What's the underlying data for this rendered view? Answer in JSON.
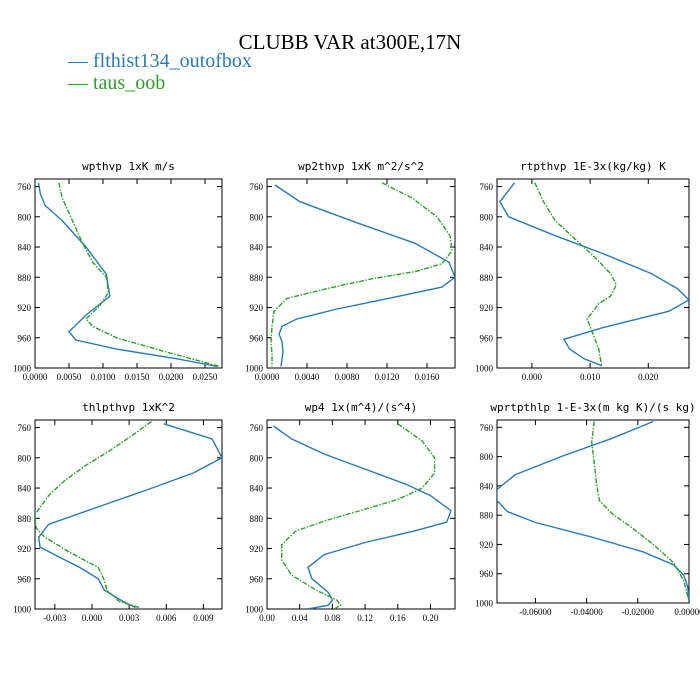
{
  "title": "CLUBB VAR at300E,17N",
  "legend": [
    {
      "label": "flthist134_outofbox",
      "color": "#2a7ab8"
    },
    {
      "label": "taus_oob",
      "color": "#2ca02c"
    }
  ],
  "chart_data": [
    {
      "type": "line",
      "title": "wpthvp   1xK m/s",
      "xlim": [
        0,
        0.0275
      ],
      "ylim": [
        1000,
        750
      ],
      "xticks": [
        "0.0000",
        "0.0050",
        "0.0100",
        "0.0150",
        "0.0200",
        "0.0250"
      ],
      "xtick_values": [
        0,
        0.005,
        0.01,
        0.015,
        0.02,
        0.025
      ],
      "yticks": [
        "760",
        "800",
        "840",
        "880",
        "920",
        "960",
        "1000"
      ],
      "ytick_values": [
        760,
        800,
        840,
        880,
        920,
        960,
        1000
      ],
      "series": [
        {
          "name": "flthist134_outofbox",
          "style": "solid",
          "x": [
            0.0005,
            0.0008,
            0.0015,
            0.004,
            0.0075,
            0.0105,
            0.011,
            0.0075,
            0.005,
            0.006,
            0.012,
            0.021,
            0.0268
          ],
          "y": [
            755,
            770,
            785,
            805,
            840,
            876,
            905,
            930,
            952,
            963,
            975,
            988,
            998
          ]
        },
        {
          "name": "taus_oob",
          "style": "dashed",
          "x": [
            0.0035,
            0.004,
            0.0055,
            0.007,
            0.0085,
            0.0105,
            0.0108,
            0.0095,
            0.0075,
            0.0085,
            0.012,
            0.019,
            0.0272
          ],
          "y": [
            755,
            775,
            805,
            835,
            860,
            880,
            900,
            918,
            935,
            945,
            960,
            978,
            998
          ]
        }
      ]
    },
    {
      "type": "line",
      "title": "wp2thvp   1xK m^2/s^2",
      "xlim": [
        0,
        0.0188
      ],
      "ylim": [
        1000,
        750
      ],
      "xticks": [
        "0.0000",
        "0.0040",
        "0.0080",
        "0.0120",
        "0.0160"
      ],
      "xtick_values": [
        0,
        0.004,
        0.008,
        0.012,
        0.016
      ],
      "yticks": [
        "760",
        "800",
        "840",
        "880",
        "920",
        "960",
        "1000"
      ],
      "ytick_values": [
        760,
        800,
        840,
        880,
        920,
        960,
        1000
      ],
      "series": [
        {
          "name": "flthist134_outofbox",
          "style": "solid",
          "x": [
            0.0008,
            0.0033,
            0.009,
            0.0148,
            0.0182,
            0.0188,
            0.0175,
            0.0125,
            0.007,
            0.003,
            0.0015,
            0.0012,
            0.0015,
            0.0016,
            0.0014
          ],
          "y": [
            758,
            780,
            808,
            835,
            860,
            880,
            893,
            907,
            922,
            935,
            945,
            955,
            965,
            978,
            998
          ]
        },
        {
          "name": "taus_oob",
          "style": "dashed",
          "x": [
            0.0115,
            0.0145,
            0.017,
            0.0183,
            0.0185,
            0.0175,
            0.015,
            0.0105,
            0.006,
            0.002,
            0.0007,
            0.0005,
            0.0004,
            0.0005,
            0.0005
          ],
          "y": [
            755,
            775,
            800,
            825,
            845,
            862,
            872,
            882,
            895,
            908,
            925,
            945,
            965,
            982,
            998
          ]
        }
      ]
    },
    {
      "type": "line",
      "title": "rtpthvp   1E-3x(kg/kg) K",
      "xlim": [
        -0.006,
        0.027
      ],
      "ylim": [
        1000,
        750
      ],
      "xticks": [
        "0.000",
        "0.010",
        "0.020"
      ],
      "xtick_values": [
        0,
        0.01,
        0.02
      ],
      "yticks": [
        "760",
        "800",
        "840",
        "880",
        "920",
        "960",
        "1000"
      ],
      "ytick_values": [
        760,
        800,
        840,
        880,
        920,
        960,
        1000
      ],
      "series": [
        {
          "name": "flthist134_outofbox",
          "style": "solid",
          "x": [
            -0.003,
            -0.0055,
            -0.004,
            0.004,
            0.012,
            0.0205,
            0.025,
            0.027,
            0.0235,
            0.012,
            0.0055,
            0.0065,
            0.009,
            0.012
          ],
          "y": [
            755,
            780,
            800,
            825,
            848,
            875,
            895,
            910,
            925,
            947,
            962,
            975,
            988,
            997
          ]
        },
        {
          "name": "taus_oob",
          "style": "dashed",
          "x": [
            0.0005,
            0.002,
            0.004,
            0.0075,
            0.011,
            0.0135,
            0.0145,
            0.0135,
            0.0115,
            0.0095,
            0.0105,
            0.0115,
            0.012
          ],
          "y": [
            755,
            780,
            805,
            830,
            855,
            875,
            890,
            905,
            915,
            935,
            955,
            975,
            998
          ]
        }
      ]
    },
    {
      "type": "line",
      "title": "thlpthvp   1xK^2",
      "xlim": [
        -0.0046,
        0.0105
      ],
      "ylim": [
        1000,
        750
      ],
      "xticks": [
        "-0.003",
        "0.000",
        "0.003",
        "0.006",
        "0.009"
      ],
      "xtick_values": [
        -0.003,
        0,
        0.003,
        0.006,
        0.009
      ],
      "yticks": [
        "760",
        "800",
        "840",
        "880",
        "920",
        "960",
        "1000"
      ],
      "ytick_values": [
        760,
        800,
        840,
        880,
        920,
        960,
        1000
      ],
      "series": [
        {
          "name": "flthist134_outofbox",
          "style": "solid",
          "x": [
            0.0058,
            0.0097,
            0.0105,
            0.0082,
            0.0045,
            0.0005,
            -0.0035,
            -0.0043,
            -0.0042,
            -0.0028,
            -0.001,
            0.0005,
            0.001,
            0.0025,
            0.0035
          ],
          "y": [
            755,
            775,
            800,
            820,
            842,
            865,
            888,
            905,
            918,
            930,
            945,
            960,
            975,
            990,
            998
          ]
        },
        {
          "name": "taus_oob",
          "style": "dashed",
          "x": [
            0.0048,
            0.0033,
            0.0015,
            -0.0005,
            -0.0022,
            -0.0035,
            -0.0046,
            -0.0045,
            -0.0038,
            -0.0018,
            0.0005,
            0.001,
            0.0012,
            0.0022,
            0.0038
          ],
          "y": [
            752,
            770,
            790,
            810,
            830,
            850,
            875,
            893,
            905,
            925,
            945,
            962,
            975,
            990,
            998
          ]
        }
      ]
    },
    {
      "type": "line",
      "title": "wp4   1x(m^4)/(s^4)",
      "xlim": [
        0,
        0.23
      ],
      "ylim": [
        1000,
        750
      ],
      "xticks": [
        "0.00",
        "0.04",
        "0.08",
        "0.12",
        "0.16",
        "0.20"
      ],
      "xtick_values": [
        0,
        0.04,
        0.08,
        0.12,
        0.16,
        0.2
      ],
      "yticks": [
        "760",
        "800",
        "840",
        "880",
        "920",
        "960",
        "1000"
      ],
      "ytick_values": [
        760,
        800,
        840,
        880,
        920,
        960,
        1000
      ],
      "series": [
        {
          "name": "flthist134_outofbox",
          "style": "solid",
          "x": [
            0.008,
            0.03,
            0.07,
            0.12,
            0.17,
            0.2,
            0.225,
            0.22,
            0.18,
            0.12,
            0.07,
            0.05,
            0.055,
            0.075,
            0.08,
            0.075,
            0.05
          ],
          "y": [
            758,
            775,
            795,
            815,
            835,
            850,
            870,
            885,
            897,
            912,
            928,
            945,
            960,
            978,
            988,
            995,
            1000
          ]
        },
        {
          "name": "taus_oob",
          "style": "dashed",
          "x": [
            0.16,
            0.19,
            0.205,
            0.205,
            0.19,
            0.16,
            0.12,
            0.075,
            0.035,
            0.018,
            0.018,
            0.03,
            0.06,
            0.085,
            0.09,
            0.082
          ],
          "y": [
            755,
            778,
            800,
            820,
            840,
            855,
            868,
            882,
            897,
            915,
            935,
            955,
            975,
            988,
            995,
            1000
          ]
        }
      ]
    },
    {
      "type": "line",
      "title": "wprtpthlp   1-E-3x(m kg K)/(s kg)",
      "xlim": [
        -0.075,
        0
      ],
      "ylim": [
        1000,
        750
      ],
      "xticks": [
        "-0.06000",
        "-0.04000",
        "-0.02000",
        "0.00000"
      ],
      "xtick_values": [
        -0.06,
        -0.04,
        -0.02,
        0
      ],
      "yticks": [
        "760",
        "800",
        "840",
        "880",
        "920",
        "960",
        "1000"
      ],
      "ytick_values": [
        760,
        800,
        840,
        880,
        920,
        960,
        1000
      ],
      "series": [
        {
          "name": "flthist134_outofbox",
          "style": "solid",
          "x": [
            -0.014,
            -0.03,
            -0.05,
            -0.068,
            -0.075,
            -0.075,
            -0.071,
            -0.06,
            -0.038,
            -0.018,
            -0.006,
            -0.002,
            -0.0005,
            0
          ],
          "y": [
            752,
            775,
            800,
            825,
            845,
            860,
            875,
            890,
            910,
            930,
            948,
            962,
            978,
            998
          ]
        },
        {
          "name": "taus_oob",
          "style": "dashed",
          "x": [
            -0.037,
            -0.038,
            -0.037,
            -0.036,
            -0.035,
            -0.03,
            -0.022,
            -0.014,
            -0.006,
            -0.002,
            0
          ],
          "y": [
            752,
            780,
            810,
            840,
            860,
            878,
            898,
            920,
            945,
            970,
            998
          ]
        }
      ]
    }
  ]
}
